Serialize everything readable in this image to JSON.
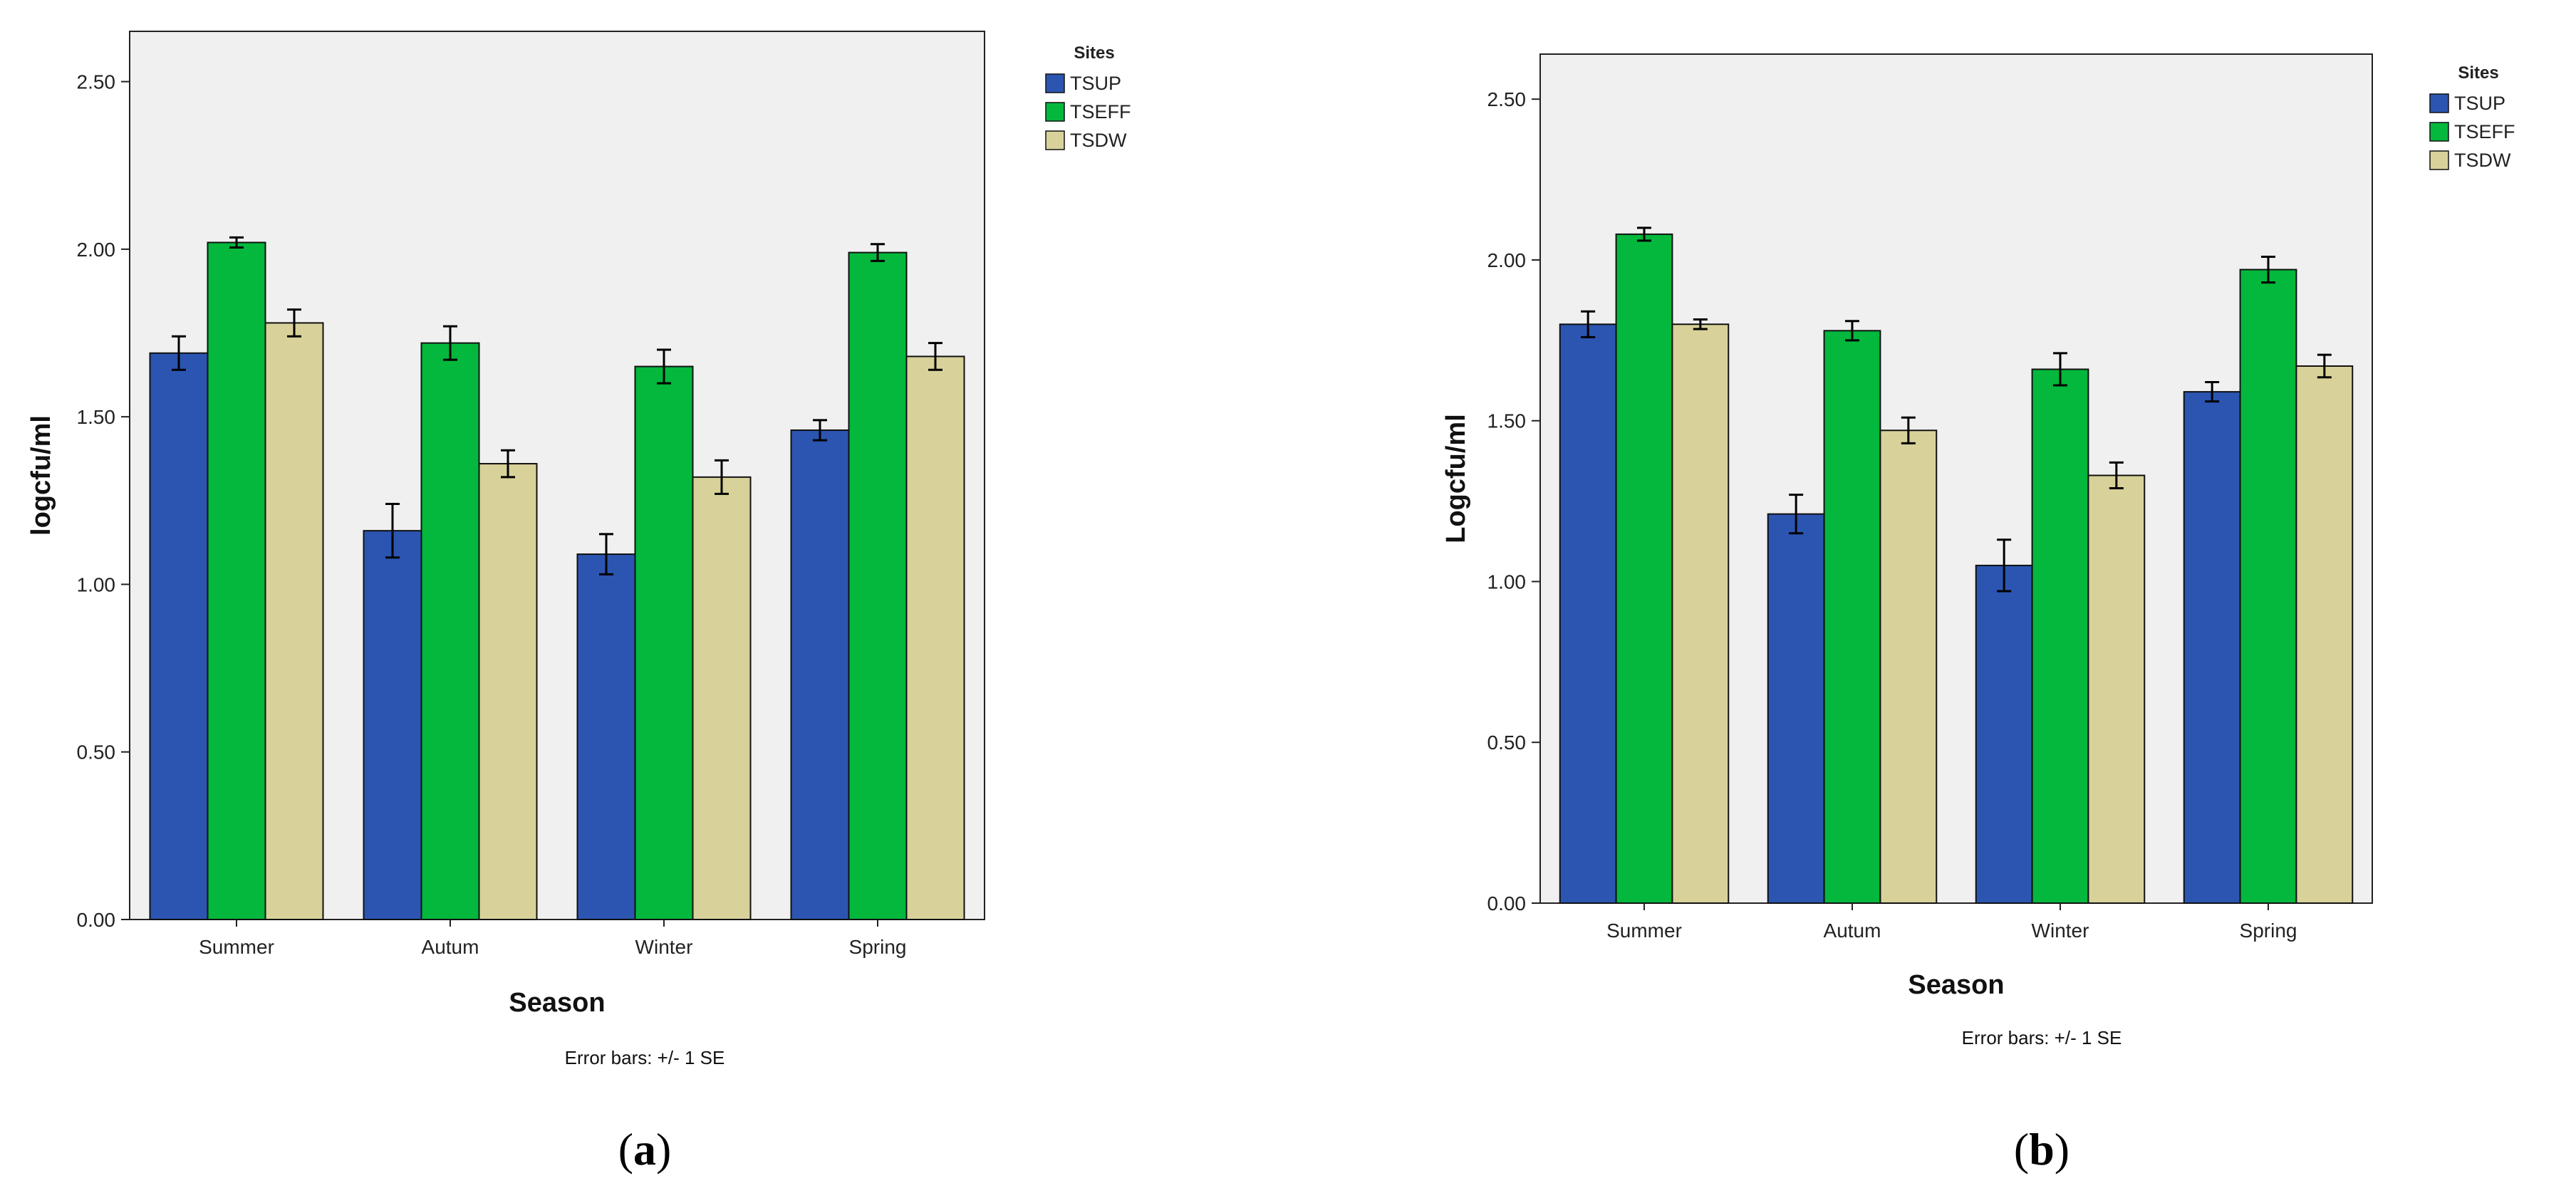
{
  "colors": {
    "TSUP": "#2b55b0",
    "TSEFF": "#03b83c",
    "TSDW": "#d8d29a",
    "plot_bg": "#f0f0f0"
  },
  "chart_data": [
    {
      "type": "bar",
      "panel_label": "a",
      "xlabel": "Season",
      "ylabel": "logcfu/ml",
      "ylim": [
        0,
        2.65
      ],
      "yticks": [
        "0.00",
        "0.50",
        "1.00",
        "1.50",
        "2.00",
        "2.50"
      ],
      "categories": [
        "Summer",
        "Autum",
        "Winter",
        "Spring"
      ],
      "legend_title": "Sites",
      "legend_position": "top-right",
      "footnote": "Error bars: +/- 1 SE",
      "series": [
        {
          "name": "TSUP",
          "values": [
            1.69,
            1.16,
            1.09,
            1.46
          ],
          "errors": [
            0.05,
            0.08,
            0.06,
            0.03
          ]
        },
        {
          "name": "TSEFF",
          "values": [
            2.02,
            1.72,
            1.65,
            1.99
          ],
          "errors": [
            0.015,
            0.05,
            0.05,
            0.025
          ]
        },
        {
          "name": "TSDW",
          "values": [
            1.78,
            1.36,
            1.32,
            1.68
          ],
          "errors": [
            0.04,
            0.04,
            0.05,
            0.04
          ]
        }
      ]
    },
    {
      "type": "bar",
      "panel_label": "b",
      "xlabel": "Season",
      "ylabel": "Logcfu/ml",
      "ylim": [
        0,
        2.64
      ],
      "yticks": [
        "0.00",
        "0.50",
        "1.00",
        "1.50",
        "2.00",
        "2.50"
      ],
      "categories": [
        "Summer",
        "Autum",
        "Winter",
        "Spring"
      ],
      "legend_title": "Sites",
      "legend_position": "top-right",
      "footnote": "Error bars: +/- 1 SE",
      "series": [
        {
          "name": "TSUP",
          "values": [
            1.8,
            1.21,
            1.05,
            1.59
          ],
          "errors": [
            0.04,
            0.06,
            0.08,
            0.03
          ]
        },
        {
          "name": "TSEFF",
          "values": [
            2.08,
            1.78,
            1.66,
            1.97
          ],
          "errors": [
            0.02,
            0.03,
            0.05,
            0.04
          ]
        },
        {
          "name": "TSDW",
          "values": [
            1.8,
            1.47,
            1.33,
            1.67
          ],
          "errors": [
            0.015,
            0.04,
            0.04,
            0.035
          ]
        }
      ]
    }
  ]
}
